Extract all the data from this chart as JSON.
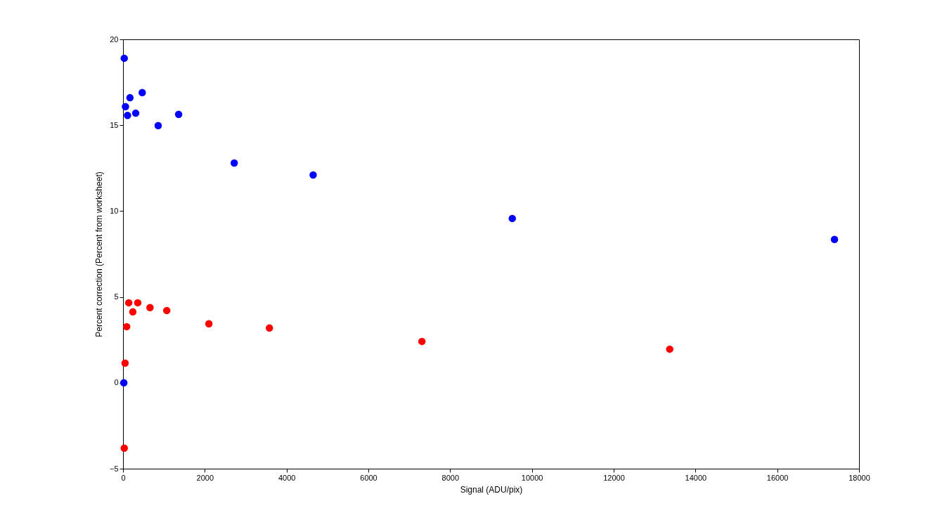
{
  "chart_data": {
    "type": "scatter",
    "xlabel": "Signal (ADU/pix)",
    "ylabel": "Percent correction (Percent from worksheet)",
    "marker": "circle",
    "grid": false,
    "legend": false,
    "xlim": [
      0,
      18000
    ],
    "xticks": [
      0,
      2000,
      4000,
      6000,
      8000,
      10000,
      12000,
      14000,
      16000,
      18000
    ],
    "ylim": [
      -5,
      20
    ],
    "yticks": [
      -5,
      0,
      5,
      10,
      15,
      20
    ],
    "series": [
      {
        "color": "#0000ff",
        "x": [
          20,
          30,
          60,
          110,
          170,
          310,
          470,
          860,
          1360,
          2720,
          4650,
          9520,
          17400
        ],
        "values": [
          0,
          18.9,
          16.08,
          15.57,
          16.6,
          15.7,
          16.9,
          14.98,
          15.63,
          12.8,
          12.1,
          9.57,
          8.35
        ]
      },
      {
        "color": "#ff0000",
        "x": [
          30,
          50,
          90,
          140,
          240,
          360,
          660,
          1070,
          2100,
          3580,
          7310,
          13370
        ],
        "values": [
          -3.8,
          1.15,
          3.27,
          4.66,
          4.13,
          4.66,
          4.38,
          4.21,
          3.44,
          3.19,
          2.41,
          1.96
        ]
      }
    ]
  }
}
